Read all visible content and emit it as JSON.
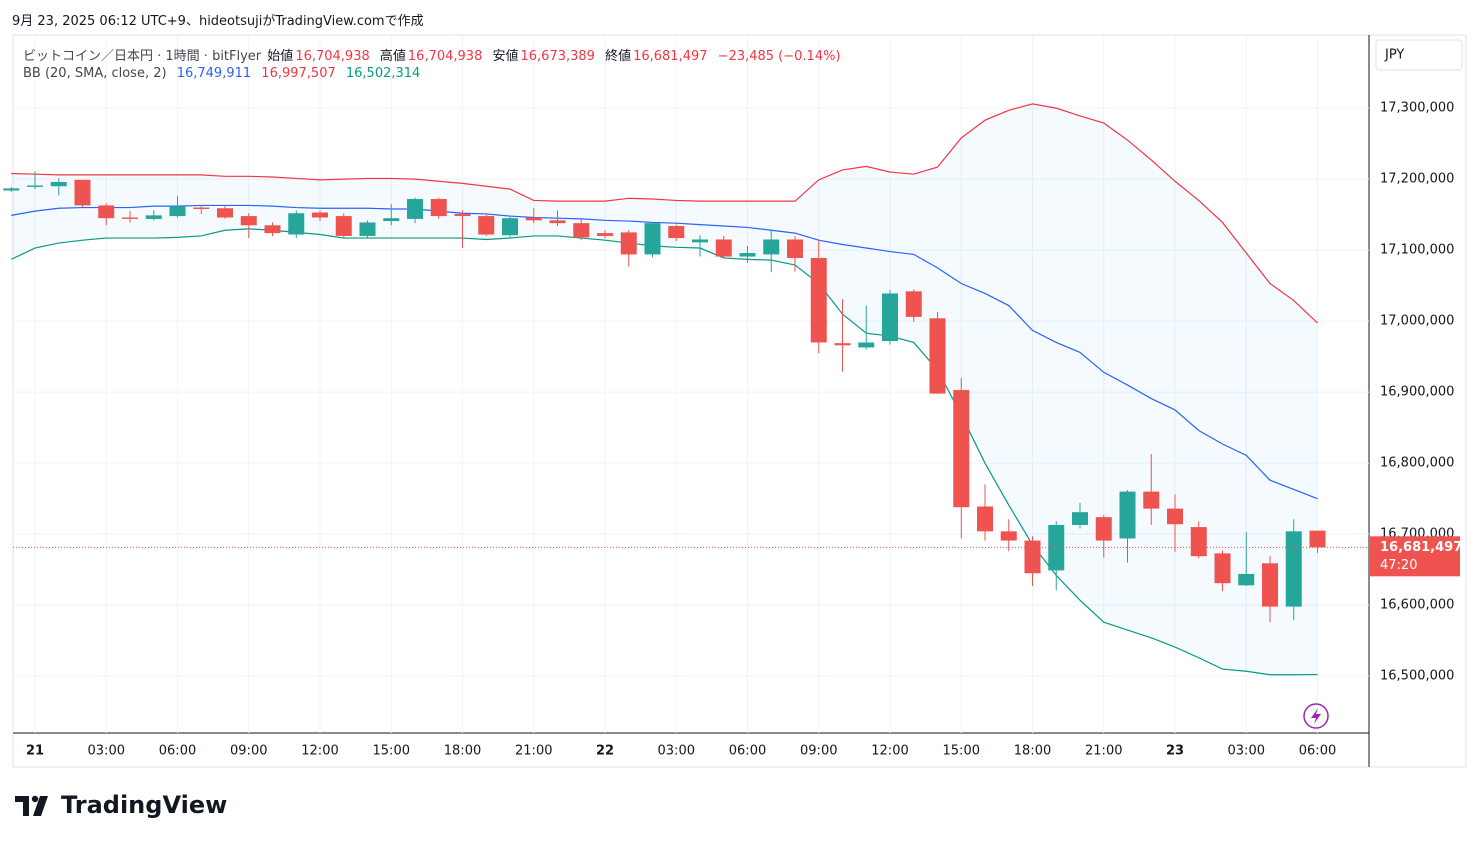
{
  "caption": "9月 23, 2025 06:12 UTC+9、hideotsujiがTradingView.comで作成",
  "brand": "TradingView",
  "chart_data": {
    "type": "candlestick",
    "symbol": "ビットコイン／日本円 · 1時間 · bitFlyer",
    "ohlc_header": {
      "open_label": "始値",
      "open": "16,704,938",
      "high_label": "高値",
      "high": "16,704,938",
      "low_label": "安値",
      "low": "16,673,389",
      "close_label": "終値",
      "close": "16,681,497",
      "change": "−23,485 (−0.14%)"
    },
    "currency": "JPY",
    "last_price_label": "16,681,497",
    "countdown": "47:20",
    "up_color": "#26a69a",
    "down_color": "#ef5350",
    "categories": [
      null,
      "21",
      null,
      null,
      "03:00",
      null,
      null,
      "06:00",
      null,
      null,
      "09:00",
      null,
      null,
      "12:00",
      null,
      null,
      "15:00",
      null,
      null,
      "18:00",
      null,
      null,
      "21:00",
      null,
      null,
      "22",
      null,
      null,
      "03:00",
      null,
      null,
      "06:00",
      null,
      null,
      "09:00",
      null,
      null,
      "12:00",
      null,
      null,
      "15:00",
      null,
      null,
      "18:00",
      null,
      null,
      "21:00",
      null,
      null,
      "23",
      null,
      null,
      "03:00",
      null,
      null,
      "06:00"
    ],
    "open": [
      17184000,
      17189000,
      17190000,
      17199000,
      17163000,
      17146000,
      17144000,
      17148000,
      17160000,
      17159000,
      17148000,
      17135000,
      17122000,
      17153000,
      17148000,
      17120000,
      17141000,
      17144000,
      17172000,
      17151000,
      17148000,
      17121000,
      17146000,
      17142000,
      17138000,
      17124000,
      17125000,
      17094000,
      17134000,
      17111000,
      17115000,
      17091000,
      17094000,
      17115000,
      17089000,
      16969000,
      16963000,
      16972000,
      17042000,
      17004000,
      16903000,
      16739000,
      16704000,
      16691000,
      16649000,
      16713000,
      16724000,
      16694000,
      16760000,
      16736000,
      16710000,
      16673000,
      16628000,
      16659000,
      16598000,
      16704938
    ],
    "high": [
      17189000,
      17211000,
      17201000,
      17199000,
      17166000,
      17155000,
      17156000,
      17176000,
      17163000,
      17163000,
      17152000,
      17139000,
      17156000,
      17156000,
      17152000,
      17142000,
      17165000,
      17174000,
      17174000,
      17156000,
      17152000,
      17149000,
      17159000,
      17156000,
      17145000,
      17128000,
      17128000,
      17139000,
      17136000,
      17121000,
      17120000,
      17106000,
      17127000,
      17120000,
      17114000,
      17031000,
      17022000,
      17044000,
      17045000,
      17013000,
      16920000,
      16770000,
      16721000,
      16697000,
      16718000,
      16744000,
      16727000,
      16762000,
      16813000,
      16756000,
      16718000,
      16677000,
      16703000,
      16669000,
      16721000,
      16704938
    ],
    "low": [
      17182000,
      17186000,
      17177000,
      17160000,
      17135000,
      17139000,
      17142000,
      17146000,
      17151000,
      17144000,
      17117000,
      17120000,
      17117000,
      17141000,
      17117000,
      17117000,
      17135000,
      17138000,
      17144000,
      17103000,
      17120000,
      17117000,
      17138000,
      17134000,
      17114000,
      17117000,
      17077000,
      17090000,
      17113000,
      17091000,
      17089000,
      17082000,
      17069000,
      17070000,
      16955000,
      16929000,
      16960000,
      16967000,
      16999000,
      16897000,
      16694000,
      16691000,
      16676000,
      16627000,
      16621000,
      16708000,
      16667000,
      16660000,
      16713000,
      16675000,
      16666000,
      16620000,
      16627000,
      16576000,
      16579000,
      16673389
    ],
    "close": [
      17187000,
      17191000,
      17196000,
      17163000,
      17145000,
      17144000,
      17149000,
      17162000,
      17158000,
      17146000,
      17135000,
      17124000,
      17152000,
      17146000,
      17120000,
      17139000,
      17145000,
      17172000,
      17148000,
      17148000,
      17122000,
      17145000,
      17142000,
      17138000,
      17118000,
      17120000,
      17094000,
      17138000,
      17117000,
      17115000,
      17091000,
      17096000,
      17115000,
      17089000,
      16970000,
      16966000,
      16970000,
      17039000,
      17006000,
      16898000,
      16738000,
      16704000,
      16691000,
      16645000,
      16713000,
      16731000,
      16691000,
      16760000,
      16736000,
      16714000,
      16669000,
      16631000,
      16644000,
      16598000,
      16704000,
      16681497
    ],
    "indicator": {
      "label": "BB (20, SMA, close, 2)",
      "fill": "rgba(33,150,243,0.05)",
      "basis": {
        "color": "#2962ff",
        "last_label": "16,749,911",
        "values": [
          17149000,
          17155000,
          17159000,
          17160000,
          17160000,
          17160000,
          17162000,
          17162000,
          17163000,
          17163000,
          17163000,
          17162000,
          17160000,
          17159000,
          17159000,
          17159000,
          17158000,
          17158000,
          17155000,
          17152000,
          17151000,
          17148000,
          17146000,
          17145000,
          17144000,
          17142000,
          17141000,
          17139000,
          17138000,
          17136000,
          17134000,
          17132000,
          17128000,
          17124000,
          17114000,
          17108000,
          17103000,
          17098000,
          17094000,
          17075000,
          17053000,
          17039000,
          17022000,
          16987000,
          16970000,
          16956000,
          16928000,
          16910000,
          16891000,
          16875000,
          16846000,
          16827000,
          16811000,
          16776000,
          16763000,
          16749911
        ]
      },
      "upper": {
        "color": "#f23645",
        "last_label": "16,997,507",
        "values": [
          17208000,
          17207000,
          17206000,
          17206000,
          17206000,
          17206000,
          17206000,
          17206000,
          17206000,
          17204000,
          17204000,
          17203000,
          17201000,
          17199000,
          17200000,
          17201000,
          17201000,
          17200000,
          17197000,
          17194000,
          17190000,
          17186000,
          17170000,
          17169000,
          17169000,
          17169000,
          17173000,
          17172000,
          17170000,
          17169000,
          17169000,
          17169000,
          17169000,
          17169000,
          17199000,
          17213000,
          17218000,
          17210000,
          17207000,
          17217000,
          17258000,
          17283000,
          17297000,
          17306000,
          17300000,
          17289000,
          17279000,
          17255000,
          17227000,
          17197000,
          17170000,
          17139000,
          17096000,
          17053000,
          17029000,
          16997507
        ]
      },
      "lower": {
        "color": "#089981",
        "last_label": "16,502,314",
        "values": [
          17087000,
          17103000,
          17110000,
          17114000,
          17117000,
          17117000,
          17117000,
          17118000,
          17120000,
          17128000,
          17130000,
          17128000,
          17125000,
          17122000,
          17117000,
          17117000,
          17117000,
          17117000,
          17117000,
          17117000,
          17115000,
          17117000,
          17120000,
          17120000,
          17117000,
          17114000,
          17110000,
          17106000,
          17104000,
          17103000,
          17089000,
          17087000,
          17086000,
          17079000,
          17053000,
          17010000,
          16983000,
          16979000,
          16970000,
          16931000,
          16868000,
          16800000,
          16741000,
          16685000,
          16642000,
          16607000,
          16576000,
          16565000,
          16554000,
          16541000,
          16526000,
          16510000,
          16507000,
          16502000,
          16502000,
          16502314
        ]
      }
    },
    "ylim": [
      16420000,
      17403000
    ],
    "yticks": [
      {
        "value": 16500000,
        "label": "16,500,000"
      },
      {
        "value": 16600000,
        "label": "16,600,000"
      },
      {
        "value": 16700000,
        "label": "16,700,000"
      },
      {
        "value": 16800000,
        "label": "16,800,000"
      },
      {
        "value": 16900000,
        "label": "16,900,000"
      },
      {
        "value": 17000000,
        "label": "17,000,000"
      },
      {
        "value": 17100000,
        "label": "17,100,000"
      },
      {
        "value": 17200000,
        "label": "17,200,000"
      },
      {
        "value": 17300000,
        "label": "17,300,000"
      }
    ],
    "grid": true
  }
}
